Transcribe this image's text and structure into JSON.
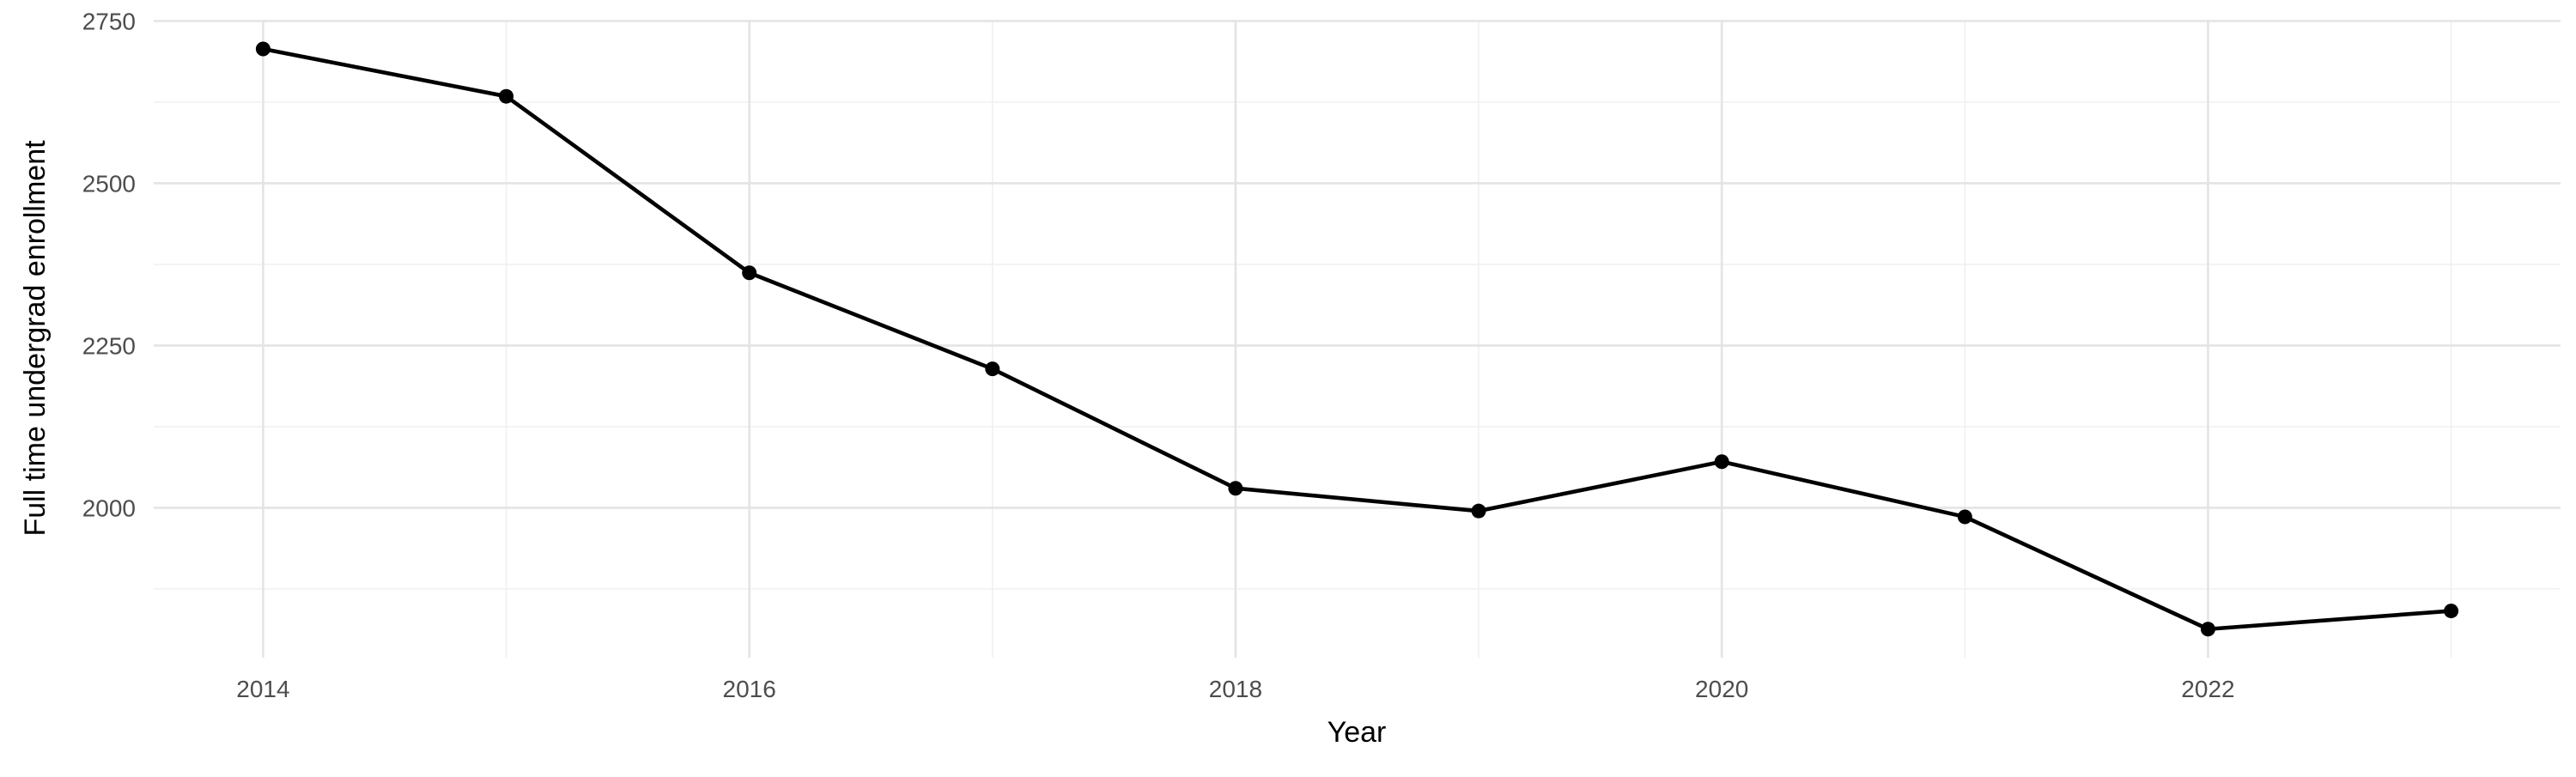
{
  "chart_data": {
    "type": "line",
    "title": "",
    "xlabel": "Year",
    "ylabel": "Full time undergrad enrollment",
    "x": [
      2014,
      2015,
      2016,
      2017,
      2018,
      2019,
      2020,
      2021,
      2022,
      2023
    ],
    "series": [
      {
        "name": "Full time undergrad enrollment",
        "values": [
          2707,
          2634,
          2362,
          2214,
          2030,
          1995,
          2071,
          1986,
          1813,
          1841
        ]
      }
    ],
    "x_major_ticks": [
      2014,
      2016,
      2018,
      2020,
      2022
    ],
    "x_minor_gridlines": [
      2015,
      2017,
      2019,
      2021,
      2023
    ],
    "y_major_ticks": [
      2750,
      2500,
      2250,
      2000
    ],
    "y_minor_gridlines": [
      2625,
      2375,
      2125,
      1875
    ],
    "x_range": [
      2013.55,
      2023.45
    ],
    "y_range": [
      1769,
      2752
    ],
    "grid": true,
    "legend": "none",
    "marker": "point",
    "colors": {
      "line": "#000000",
      "point": "#000000",
      "grid_major": "#e4e4e4",
      "grid_minor": "#f0f0f0",
      "tick_label": "#4d4d4d",
      "axis_title": "#000000",
      "background": "#ffffff"
    }
  }
}
